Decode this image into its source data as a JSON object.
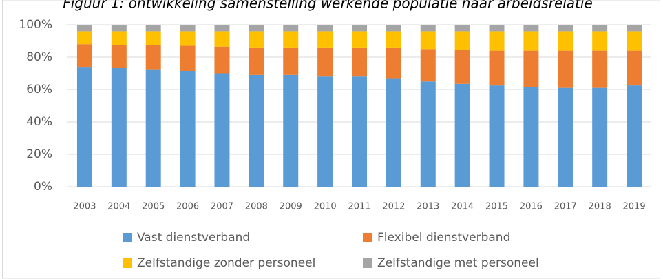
{
  "chart_data": {
    "type": "stacked_bar",
    "title": "Figuur 1: ontwikkeling samenstelling werkende populatie naar arbeidsrelatie",
    "categories": [
      "2003",
      "2004",
      "2005",
      "2006",
      "2007",
      "2008",
      "2009",
      "2010",
      "2011",
      "2012",
      "2013",
      "2014",
      "2015",
      "2016",
      "2017",
      "2018",
      "2019"
    ],
    "series": [
      {
        "name": "Vast dienstverband",
        "color": "#5b9bd5",
        "values": [
          74,
          73.5,
          72.5,
          71.5,
          70,
          69,
          69,
          68,
          68,
          67,
          65,
          63.5,
          62.5,
          61.5,
          61,
          61,
          62.5
        ]
      },
      {
        "name": "Flexibel dienstverband",
        "color": "#ed7d31",
        "values": [
          14,
          14,
          15,
          15.5,
          16.5,
          17,
          17,
          18,
          18,
          19,
          20,
          21,
          21.5,
          22.5,
          23,
          23,
          21.5
        ]
      },
      {
        "name": "Zelfstandige zonder personeel",
        "color": "#ffc000",
        "values": [
          8,
          8.5,
          8.5,
          9,
          9.5,
          10,
          10,
          10,
          10,
          10,
          11,
          11.5,
          12,
          12,
          12,
          12,
          12
        ]
      },
      {
        "name": "Zelfstandige met personeel",
        "color": "#a5a5a5",
        "values": [
          4,
          4,
          4,
          4,
          4,
          4,
          4,
          4,
          4,
          4,
          4,
          4,
          4,
          4,
          4,
          4,
          4
        ]
      }
    ],
    "ylim": [
      0,
      100
    ],
    "yticks": [
      {
        "value": 0,
        "label": "0%"
      },
      {
        "value": 20,
        "label": "20%"
      },
      {
        "value": 40,
        "label": "40%"
      },
      {
        "value": 60,
        "label": "60%"
      },
      {
        "value": 80,
        "label": "80%"
      },
      {
        "value": 100,
        "label": "100%"
      }
    ],
    "grid": true
  }
}
